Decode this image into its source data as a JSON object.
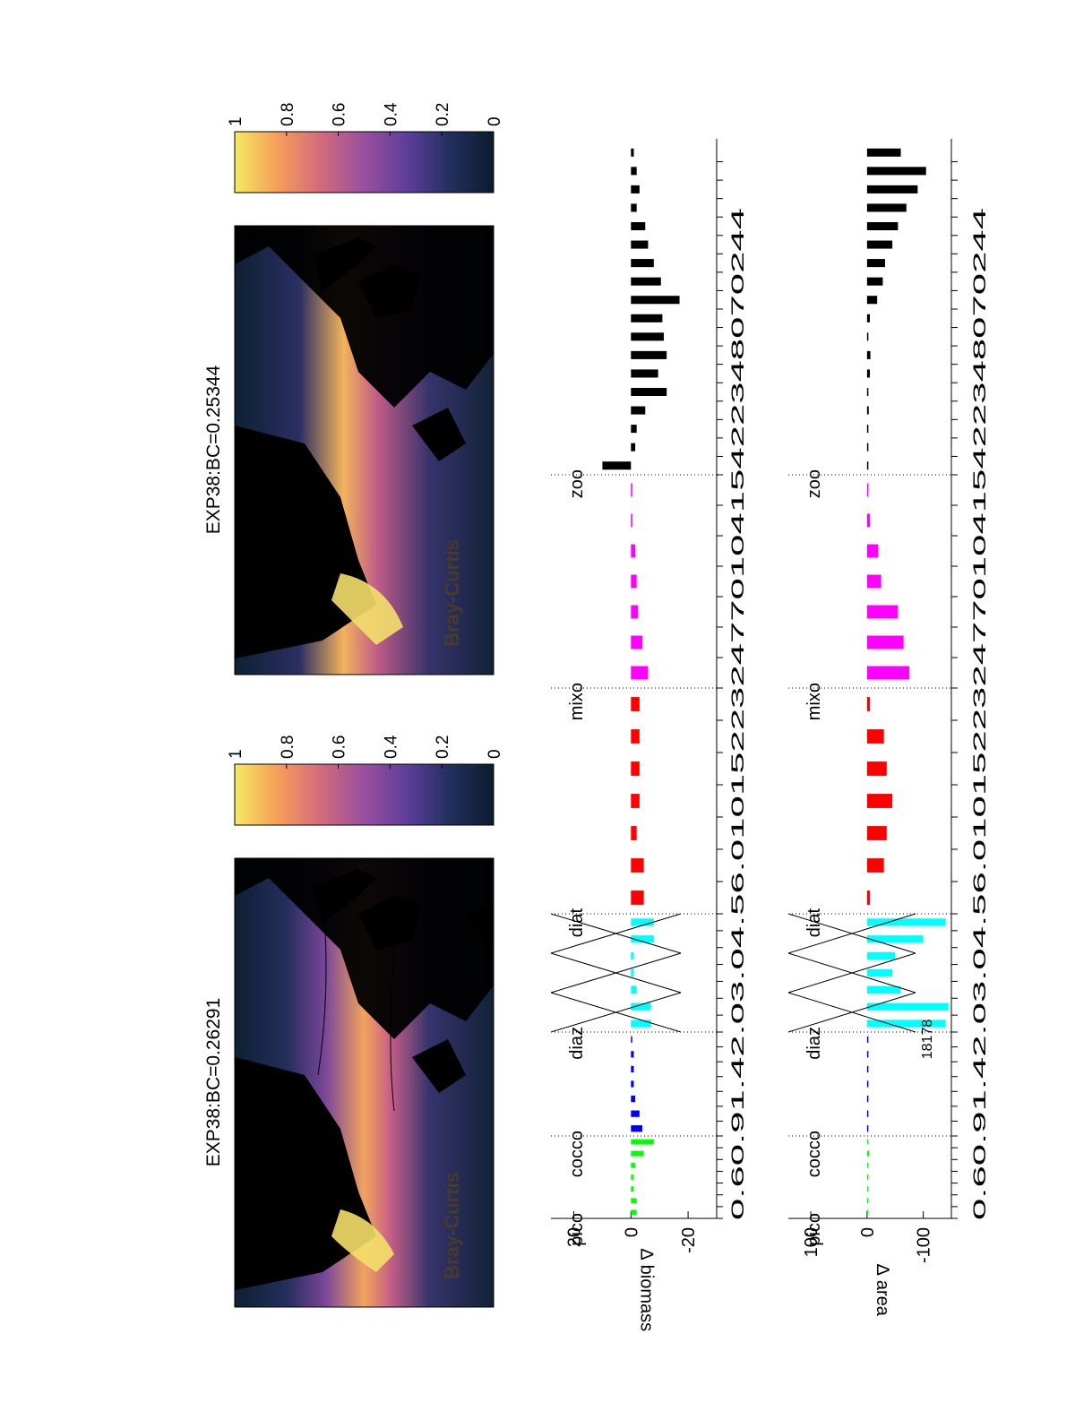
{
  "chart_data": [
    {
      "type": "heatmap",
      "title": "EXP38:BC=0.26291",
      "annotation": "Bray-Curtis",
      "colorbar": {
        "ticks": [
          0,
          0.2,
          0.4,
          0.6,
          0.8,
          1
        ],
        "range": [
          0,
          1
        ],
        "colors": [
          "#0b1b2d",
          "#22305e",
          "#5b3d9a",
          "#9a4f9e",
          "#d36b7a",
          "#f59d5a",
          "#f5e962"
        ]
      }
    },
    {
      "type": "heatmap",
      "title": "EXP38:BC=0.25344",
      "annotation": "Bray-Curtis",
      "colorbar": {
        "ticks": [
          0,
          0.2,
          0.4,
          0.6,
          0.8,
          1
        ],
        "range": [
          0,
          1
        ]
      }
    },
    {
      "type": "bar",
      "ylabel": "∆ biomass",
      "ylim": [
        -30,
        28
      ],
      "yticks": [
        20,
        0,
        -20
      ],
      "groups": [
        "pico",
        "cocco",
        "diaz",
        "diat",
        "mixo",
        "zoo"
      ],
      "series": [
        {
          "group": "pico",
          "color": "#00ff00",
          "values": [
            -2,
            -2,
            -1,
            -1,
            -1.5,
            -4.5,
            -8
          ]
        },
        {
          "group": "cocco",
          "color": "#0000ff",
          "values": [
            -4,
            -3,
            -1.5,
            -1,
            -1,
            -1,
            0
          ]
        },
        {
          "group": "diaz",
          "color": "#00ffff",
          "values": [
            -7,
            -7,
            -2,
            -1,
            -1,
            -8,
            -8
          ]
        },
        {
          "group": "diat",
          "color": "#ff0000",
          "values": [
            -4.5,
            -4.5,
            -2,
            -3,
            -3,
            -3,
            -3
          ]
        },
        {
          "group": "mixo",
          "color": "#ff00ff",
          "values": [
            -6,
            -4,
            -2.5,
            -2,
            -1.5,
            -0.5,
            -0.5
          ]
        },
        {
          "group": "zoo",
          "color": "#000000",
          "values": [
            10,
            -1.5,
            -2,
            -5,
            -12.5,
            -9.5,
            -12.5,
            -11.5,
            -11,
            -17,
            -10.5,
            -8,
            -6,
            -5,
            -2,
            -3,
            -2,
            -1
          ]
        }
      ]
    },
    {
      "type": "bar",
      "ylabel": "∆ area",
      "ylim": [
        -150,
        140
      ],
      "yticks": [
        100,
        0,
        -100
      ],
      "groups": [
        "pico",
        "cocco",
        "diaz",
        "diat",
        "mixo",
        "zoo"
      ],
      "annotation": "18178",
      "series": [
        {
          "group": "pico",
          "color": "#00ff00",
          "values": [
            0,
            0,
            0,
            0,
            0,
            -4,
            -2
          ]
        },
        {
          "group": "cocco",
          "color": "#0000ff",
          "values": [
            -2,
            -2,
            -2,
            -2,
            -2,
            -2,
            0
          ]
        },
        {
          "group": "diaz",
          "color": "#00ffff",
          "values": [
            -140,
            -145,
            -60,
            -45,
            -50,
            -100,
            -140
          ]
        },
        {
          "group": "diat",
          "color": "#ff0000",
          "values": [
            -5,
            -30,
            -35,
            -45,
            -35,
            -30,
            -5
          ]
        },
        {
          "group": "mixo",
          "color": "#ff00ff",
          "values": [
            -75,
            -65,
            -55,
            -25,
            -20,
            -5,
            0
          ]
        },
        {
          "group": "zoo",
          "color": "#000000",
          "values": [
            0,
            0,
            -1,
            -3,
            -2,
            -5,
            -6,
            -1,
            -5,
            -18,
            -28,
            -32,
            -45,
            -55,
            -70,
            -90,
            -105,
            -60
          ]
        }
      ],
      "tick_text": "0.60.91.42.03.04.56.010152232477010415422348070244"
    }
  ]
}
